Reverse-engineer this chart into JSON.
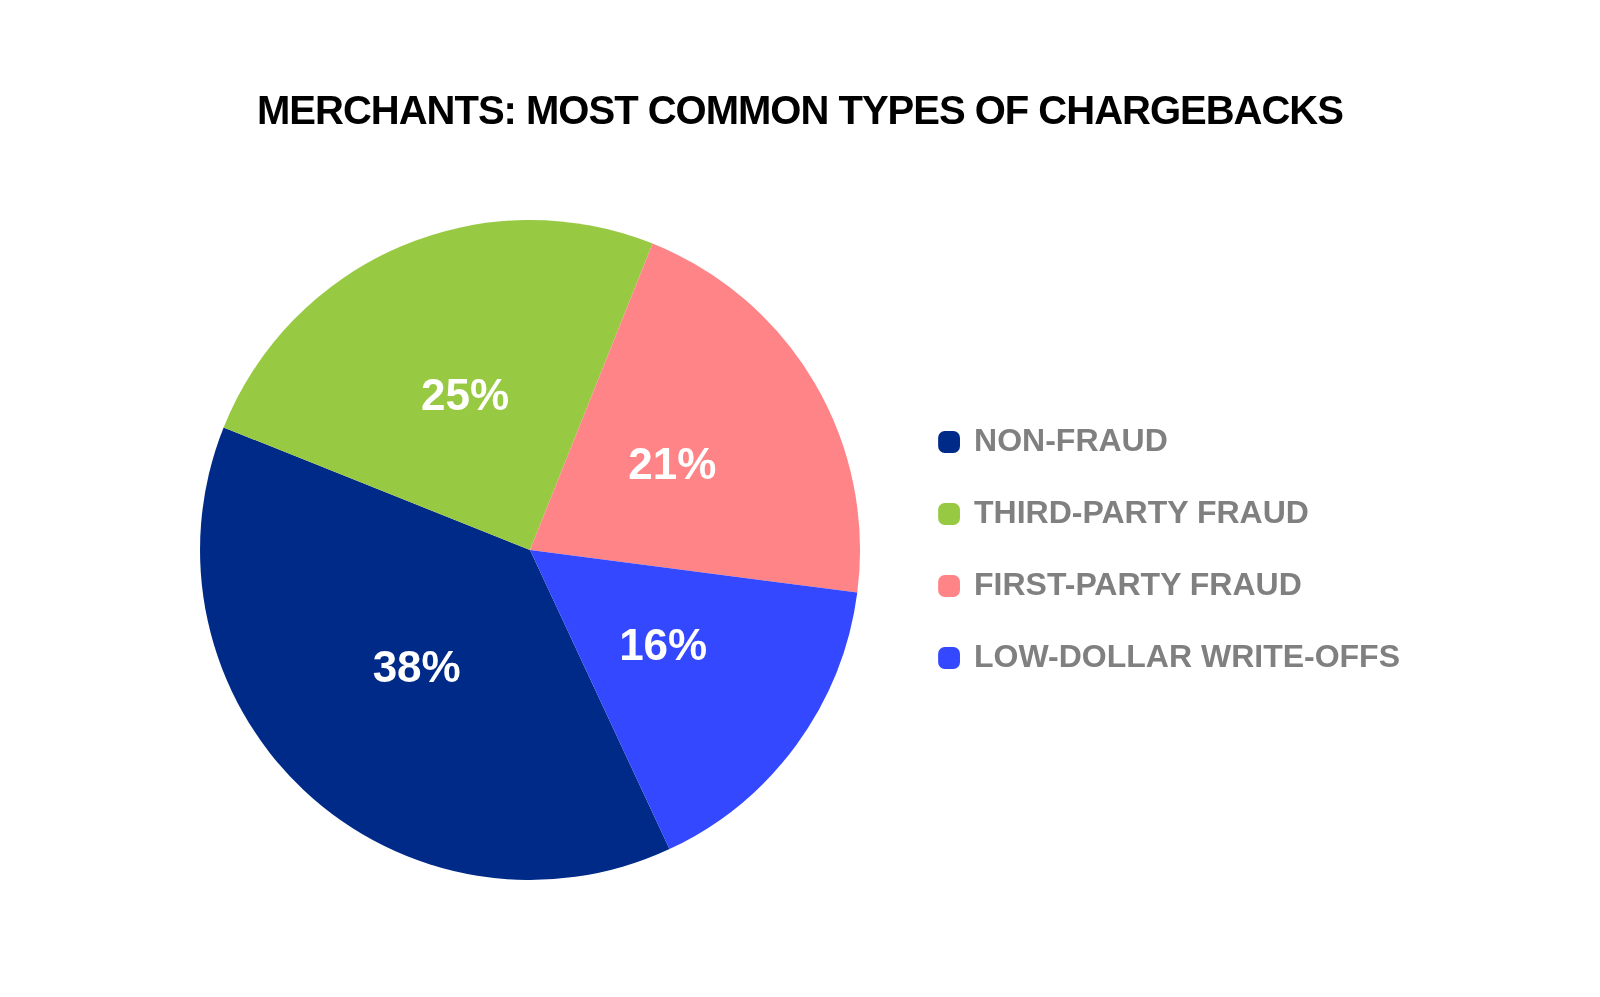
{
  "chart_data": {
    "type": "pie",
    "title": "MERCHANTS: MOST COMMON TYPES OF CHARGEBACKS",
    "categories": [
      "NON-FRAUD",
      "THIRD-PARTY FRAUD",
      "FIRST-PARTY FRAUD",
      "LOW-DOLLAR WRITE-OFFS"
    ],
    "values": [
      38,
      25,
      21,
      16
    ],
    "colors": [
      "#002a88",
      "#98c943",
      "#ff8487",
      "#3448ff"
    ],
    "value_labels": [
      "38%",
      "25%",
      "21%",
      "16%"
    ],
    "legend": "right"
  }
}
